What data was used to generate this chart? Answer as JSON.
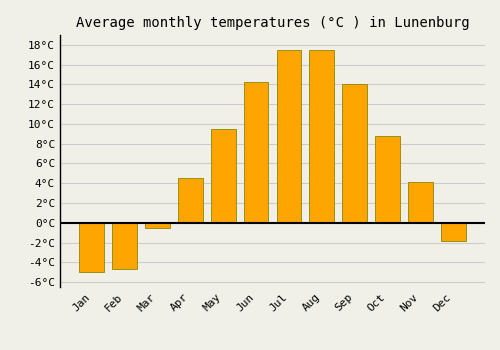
{
  "title": "Average monthly temperatures (°C ) in Lunenburg",
  "months": [
    "Jan",
    "Feb",
    "Mar",
    "Apr",
    "May",
    "Jun",
    "Jul",
    "Aug",
    "Sep",
    "Oct",
    "Nov",
    "Dec"
  ],
  "values": [
    -5.0,
    -4.7,
    -0.5,
    4.5,
    9.5,
    14.2,
    17.5,
    17.5,
    14.0,
    8.8,
    4.1,
    -1.8
  ],
  "bar_color": "#FFA500",
  "bar_edge_color": "#888800",
  "ylim": [
    -6.5,
    19
  ],
  "yticks": [
    -6,
    -4,
    -2,
    0,
    2,
    4,
    6,
    8,
    10,
    12,
    14,
    16,
    18
  ],
  "grid_color": "#cccccc",
  "background_color": "#f0f0e8",
  "title_fontsize": 10,
  "tick_fontsize": 8,
  "font_family": "monospace",
  "bar_width": 0.75
}
